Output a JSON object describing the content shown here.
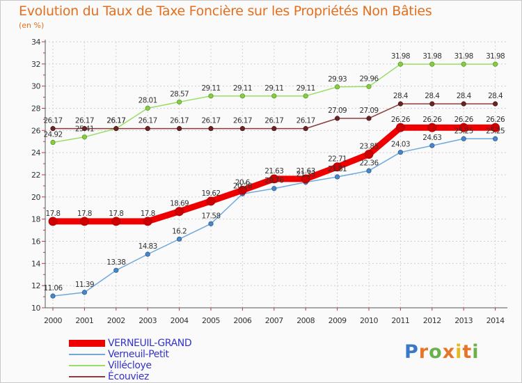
{
  "header": {
    "title": "Evolution du Taux de Taxe Foncière sur les Propriétés Non Bâties",
    "unit": "(en %)"
  },
  "logo": {
    "text": "Proxiti",
    "parts": [
      "P",
      "r",
      "o",
      "x",
      "i",
      "t",
      "i"
    ]
  },
  "colors": {
    "title": "#e36f1e",
    "axis": "#555555",
    "grid": "#d0d0d0",
    "legend_text": "#3333cc"
  },
  "chart_data": {
    "type": "line",
    "title": "Evolution du Taux de Taxe Foncière sur les Propriétés Non Bâties",
    "ylabel": "(en %)",
    "xlabel": "",
    "categories": [
      "2000",
      "2001",
      "2002",
      "2003",
      "2004",
      "2005",
      "2006",
      "2007",
      "2008",
      "2009",
      "2010",
      "2011",
      "2012",
      "2013",
      "2014"
    ],
    "ylim": [
      10,
      34
    ],
    "yticks": [
      10,
      12,
      14,
      16,
      18,
      20,
      22,
      24,
      26,
      28,
      30,
      32,
      34
    ],
    "grid": true,
    "legend_position": "bottom-left",
    "series": [
      {
        "name": "VERNEUIL-GRAND",
        "color": "#ee0000",
        "values": [
          17.8,
          17.8,
          17.8,
          17.8,
          18.69,
          19.62,
          20.6,
          21.63,
          21.63,
          22.71,
          23.85,
          26.26,
          26.26,
          26.26,
          26.26
        ],
        "labels": [
          "17.8",
          "17.8",
          "17.8",
          "17.8",
          "18.69",
          "19.62",
          "20.6",
          "21.63",
          "21.63",
          "22.71",
          "23.85",
          "26.26",
          "26.26",
          "26.26",
          "26.26"
        ]
      },
      {
        "name": "Verneuil-Petit",
        "color": "#6fa8dc",
        "values": [
          11.06,
          11.39,
          13.38,
          14.83,
          16.2,
          17.58,
          20.28,
          20.76,
          21.33,
          21.81,
          22.36,
          24.03,
          24.63,
          25.25,
          25.25
        ],
        "labels": [
          "11.06",
          "11.39",
          "13.38",
          "14.83",
          "16.2",
          "17.58",
          "20.28",
          "20.76",
          "21.33",
          "21.81",
          "22.36",
          "24.03",
          "24.63",
          "25.25",
          "25.25"
        ]
      },
      {
        "name": "Villécloye",
        "color": "#99dd66",
        "values": [
          24.92,
          25.41,
          26.17,
          28.01,
          28.57,
          29.11,
          29.11,
          29.11,
          29.11,
          29.93,
          29.96,
          31.98,
          31.98,
          31.98,
          31.98
        ],
        "labels": [
          "24.92",
          "25.41",
          "26.17",
          "28.01",
          "28.57",
          "29.11",
          "29.11",
          "29.11",
          "29.11",
          "29.93",
          "29.96",
          "31.98",
          "31.98",
          "31.98",
          "31.98"
        ]
      },
      {
        "name": "Écouviez",
        "color": "#8c3c3c",
        "values": [
          26.17,
          26.17,
          26.17,
          26.17,
          26.17,
          26.17,
          26.17,
          26.17,
          26.17,
          27.09,
          27.09,
          28.4,
          28.4,
          28.4,
          28.4
        ],
        "labels": [
          "26.17",
          "26.17",
          "26.17",
          "26.17",
          "26.17",
          "26.17",
          "26.17",
          "26.17",
          "26.17",
          "27.09",
          "27.09",
          "28.4",
          "28.4",
          "28.4",
          "28.4"
        ]
      }
    ]
  }
}
